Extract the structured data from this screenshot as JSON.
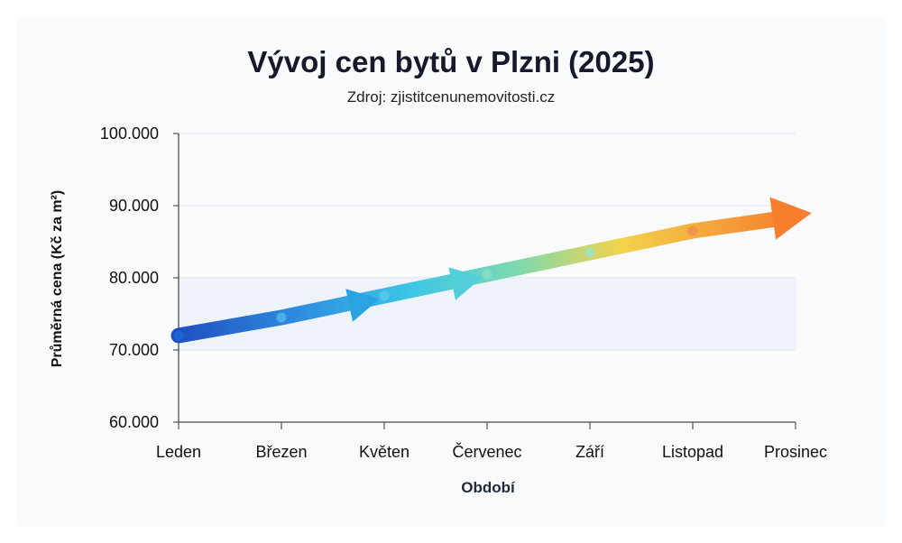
{
  "chart_data": {
    "type": "line",
    "title": "Vývoj cen bytů v Plzni (2025)",
    "subtitle": "Zdroj: zjistitcenunemovitosti.cz",
    "xlabel": "Období",
    "ylabel": "Průměrná cena (Kč za m²)",
    "categories": [
      "Leden",
      "Březen",
      "Květen",
      "Červenec",
      "Září",
      "Listopad",
      "Prosinec"
    ],
    "y_tick_labels": [
      "60.000",
      "70.000",
      "80.000",
      "90.000",
      "100.000"
    ],
    "y_ticks": [
      60000,
      70000,
      80000,
      90000,
      100000
    ],
    "ylim": [
      60000,
      100000
    ],
    "series": [
      {
        "values": [
          72000,
          74500,
          77500,
          80500,
          83500,
          86500,
          88500
        ]
      }
    ],
    "grid": true,
    "colors": [
      "#1f4fbf",
      "#2f8ee0",
      "#3cc7e6",
      "#7ed9b0",
      "#f2d34a",
      "#f5a03a",
      "#f57f2c"
    ]
  }
}
